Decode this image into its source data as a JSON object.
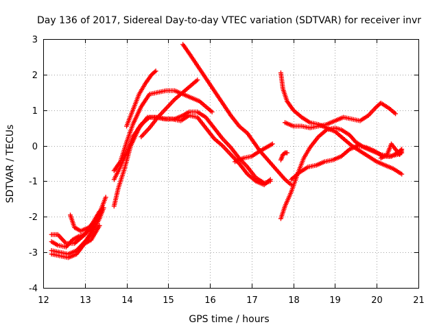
{
  "chart_data": {
    "type": "scatter",
    "title": "Day 136 of 2017, Sidereal Day-to-day VTEC variation (SDTVAR) for receiver invr",
    "xlabel": "GPS time / hours",
    "ylabel": "SDTVAR / TECUs",
    "xlim": [
      12,
      21
    ],
    "ylim": [
      -4,
      3
    ],
    "xticks": [
      {
        "value": 12,
        "label": "12"
      },
      {
        "value": 13,
        "label": "13"
      },
      {
        "value": 14,
        "label": "14"
      },
      {
        "value": 15,
        "label": "15"
      },
      {
        "value": 16,
        "label": "16"
      },
      {
        "value": 17,
        "label": "17"
      },
      {
        "value": 18,
        "label": "18"
      },
      {
        "value": 19,
        "label": "19"
      },
      {
        "value": 20,
        "label": "20"
      },
      {
        "value": 21,
        "label": "21"
      }
    ],
    "yticks": [
      {
        "value": -4,
        "label": "-4"
      },
      {
        "value": -3,
        "label": "-3"
      },
      {
        "value": -2,
        "label": "-2"
      },
      {
        "value": -1,
        "label": "-1"
      },
      {
        "value": 0,
        "label": "0"
      },
      {
        "value": 1,
        "label": "1"
      },
      {
        "value": 2,
        "label": "2"
      },
      {
        "value": 3,
        "label": "3"
      }
    ],
    "grid": true,
    "legend": "none",
    "marker": "+",
    "color": "#ff0000",
    "series": [
      {
        "name": "arc-1",
        "points": [
          [
            12.2,
            -3.05
          ],
          [
            12.4,
            -3.1
          ],
          [
            12.6,
            -3.15
          ],
          [
            12.8,
            -3.05
          ],
          [
            12.9,
            -2.9
          ],
          [
            13.05,
            -2.65
          ],
          [
            13.2,
            -2.3
          ],
          [
            13.35,
            -1.9
          ],
          [
            13.5,
            -1.45
          ]
        ]
      },
      {
        "name": "arc-2",
        "points": [
          [
            12.2,
            -2.95
          ],
          [
            12.4,
            -3.0
          ],
          [
            12.6,
            -3.05
          ],
          [
            12.8,
            -2.95
          ],
          [
            13.0,
            -2.7
          ],
          [
            13.2,
            -2.4
          ],
          [
            13.35,
            -2.05
          ],
          [
            13.45,
            -1.75
          ]
        ]
      },
      {
        "name": "arc-3",
        "points": [
          [
            12.2,
            -2.5
          ],
          [
            12.35,
            -2.5
          ],
          [
            12.55,
            -2.75
          ],
          [
            12.75,
            -2.75
          ],
          [
            12.95,
            -2.55
          ],
          [
            13.1,
            -2.35
          ],
          [
            13.25,
            -2.05
          ],
          [
            13.35,
            -1.85
          ]
        ]
      },
      {
        "name": "arc-4",
        "points": [
          [
            12.2,
            -2.7
          ],
          [
            12.35,
            -2.8
          ],
          [
            12.55,
            -2.85
          ],
          [
            12.7,
            -2.65
          ],
          [
            12.85,
            -2.55
          ],
          [
            13.0,
            -2.5
          ],
          [
            13.15,
            -2.3
          ],
          [
            13.3,
            -2.0
          ]
        ]
      },
      {
        "name": "arc-5",
        "points": [
          [
            12.65,
            -1.95
          ],
          [
            12.75,
            -2.3
          ],
          [
            12.9,
            -2.4
          ],
          [
            13.1,
            -2.3
          ],
          [
            13.25,
            -2.1
          ]
        ]
      },
      {
        "name": "arc-6",
        "points": [
          [
            12.85,
            -2.9
          ],
          [
            13.0,
            -2.75
          ],
          [
            13.15,
            -2.65
          ],
          [
            13.25,
            -2.45
          ],
          [
            13.35,
            -2.25
          ]
        ]
      },
      {
        "name": "arc-7",
        "points": [
          [
            13.7,
            -1.7
          ],
          [
            13.8,
            -1.2
          ],
          [
            13.95,
            -0.65
          ],
          [
            14.1,
            0.0
          ],
          [
            14.3,
            0.5
          ],
          [
            14.5,
            0.8
          ],
          [
            14.7,
            0.8
          ],
          [
            14.9,
            0.75
          ],
          [
            15.1,
            0.75
          ],
          [
            15.3,
            0.7
          ],
          [
            15.5,
            0.85
          ],
          [
            15.7,
            0.8
          ],
          [
            15.9,
            0.5
          ],
          [
            16.1,
            0.2
          ],
          [
            16.3,
            0.0
          ],
          [
            16.5,
            -0.25
          ],
          [
            16.7,
            -0.5
          ],
          [
            16.9,
            -0.8
          ],
          [
            17.1,
            -1.0
          ],
          [
            17.3,
            -1.1
          ],
          [
            17.45,
            -0.95
          ]
        ]
      },
      {
        "name": "arc-8",
        "points": [
          [
            13.7,
            -0.95
          ],
          [
            13.85,
            -0.6
          ],
          [
            14.0,
            -0.2
          ],
          [
            14.15,
            0.25
          ],
          [
            14.35,
            0.6
          ],
          [
            14.55,
            0.8
          ],
          [
            14.75,
            0.8
          ],
          [
            14.95,
            0.75
          ],
          [
            15.15,
            0.75
          ],
          [
            15.35,
            0.85
          ],
          [
            15.5,
            0.95
          ],
          [
            15.7,
            0.95
          ],
          [
            15.9,
            0.8
          ],
          [
            16.1,
            0.5
          ],
          [
            16.3,
            0.2
          ],
          [
            16.5,
            -0.05
          ],
          [
            16.7,
            -0.35
          ],
          [
            16.9,
            -0.6
          ],
          [
            17.1,
            -0.9
          ],
          [
            17.3,
            -1.05
          ],
          [
            17.45,
            -1.0
          ]
        ]
      },
      {
        "name": "arc-9",
        "points": [
          [
            13.7,
            -0.7
          ],
          [
            13.85,
            -0.45
          ],
          [
            14.0,
            0.1
          ],
          [
            14.15,
            0.6
          ],
          [
            14.35,
            1.1
          ],
          [
            14.55,
            1.45
          ],
          [
            14.75,
            1.5
          ],
          [
            14.95,
            1.55
          ],
          [
            15.15,
            1.55
          ],
          [
            15.35,
            1.45
          ],
          [
            15.55,
            1.35
          ],
          [
            15.75,
            1.25
          ],
          [
            15.9,
            1.1
          ],
          [
            16.05,
            0.95
          ]
        ]
      },
      {
        "name": "arc-10",
        "points": [
          [
            14.0,
            0.55
          ],
          [
            14.15,
            1.0
          ],
          [
            14.3,
            1.45
          ],
          [
            14.45,
            1.75
          ],
          [
            14.6,
            2.0
          ],
          [
            14.7,
            2.1
          ]
        ]
      },
      {
        "name": "arc-11",
        "points": [
          [
            14.35,
            0.25
          ],
          [
            14.55,
            0.5
          ],
          [
            14.75,
            0.8
          ],
          [
            14.95,
            1.05
          ],
          [
            15.15,
            1.3
          ],
          [
            15.35,
            1.5
          ],
          [
            15.55,
            1.7
          ],
          [
            15.7,
            1.85
          ]
        ]
      },
      {
        "name": "arc-12",
        "points": [
          [
            15.35,
            2.85
          ],
          [
            15.5,
            2.6
          ],
          [
            15.7,
            2.25
          ],
          [
            15.9,
            1.9
          ],
          [
            16.1,
            1.55
          ],
          [
            16.3,
            1.2
          ],
          [
            16.5,
            0.85
          ],
          [
            16.7,
            0.55
          ],
          [
            16.9,
            0.35
          ],
          [
            17.05,
            0.1
          ],
          [
            17.2,
            -0.15
          ],
          [
            17.35,
            -0.35
          ],
          [
            17.5,
            -0.55
          ],
          [
            17.65,
            -0.75
          ],
          [
            17.8,
            -0.95
          ],
          [
            17.95,
            -1.1
          ]
        ]
      },
      {
        "name": "arc-13",
        "points": [
          [
            16.6,
            -0.45
          ],
          [
            16.8,
            -0.35
          ],
          [
            17.0,
            -0.3
          ],
          [
            17.2,
            -0.15
          ],
          [
            17.35,
            -0.05
          ],
          [
            17.5,
            0.05
          ]
        ]
      },
      {
        "name": "arc-14",
        "points": [
          [
            17.7,
            -0.4
          ],
          [
            17.75,
            -0.25
          ],
          [
            17.8,
            -0.2
          ],
          [
            17.85,
            -0.2
          ]
        ]
      },
      {
        "name": "arc-15",
        "points": [
          [
            17.7,
            2.05
          ],
          [
            17.75,
            1.6
          ],
          [
            17.85,
            1.25
          ],
          [
            18.0,
            1.0
          ],
          [
            18.2,
            0.8
          ],
          [
            18.4,
            0.65
          ],
          [
            18.6,
            0.6
          ],
          [
            18.8,
            0.5
          ],
          [
            19.0,
            0.4
          ],
          [
            19.2,
            0.2
          ],
          [
            19.4,
            0.0
          ],
          [
            19.6,
            -0.15
          ],
          [
            19.8,
            -0.3
          ],
          [
            20.0,
            -0.45
          ],
          [
            20.2,
            -0.55
          ],
          [
            20.4,
            -0.65
          ],
          [
            20.6,
            -0.8
          ]
        ]
      },
      {
        "name": "arc-16",
        "points": [
          [
            17.8,
            0.65
          ],
          [
            18.0,
            0.55
          ],
          [
            18.2,
            0.55
          ],
          [
            18.4,
            0.5
          ],
          [
            18.6,
            0.55
          ],
          [
            18.8,
            0.6
          ],
          [
            19.0,
            0.7
          ],
          [
            19.2,
            0.8
          ],
          [
            19.4,
            0.75
          ],
          [
            19.6,
            0.7
          ],
          [
            19.8,
            0.85
          ],
          [
            20.0,
            1.1
          ],
          [
            20.1,
            1.2
          ],
          [
            20.3,
            1.05
          ],
          [
            20.45,
            0.9
          ]
        ]
      },
      {
        "name": "arc-17",
        "points": [
          [
            17.7,
            -2.05
          ],
          [
            17.8,
            -1.7
          ],
          [
            17.95,
            -1.3
          ],
          [
            18.1,
            -0.8
          ],
          [
            18.25,
            -0.35
          ],
          [
            18.4,
            -0.05
          ],
          [
            18.6,
            0.25
          ],
          [
            18.8,
            0.45
          ],
          [
            19.0,
            0.5
          ],
          [
            19.15,
            0.45
          ],
          [
            19.35,
            0.3
          ],
          [
            19.5,
            0.1
          ],
          [
            19.7,
            -0.05
          ],
          [
            19.9,
            -0.15
          ],
          [
            20.1,
            -0.25
          ],
          [
            20.3,
            -0.3
          ],
          [
            20.5,
            -0.25
          ],
          [
            20.6,
            -0.2
          ]
        ]
      },
      {
        "name": "arc-18",
        "points": [
          [
            17.95,
            -0.95
          ],
          [
            18.15,
            -0.75
          ],
          [
            18.35,
            -0.6
          ],
          [
            18.55,
            -0.55
          ],
          [
            18.75,
            -0.45
          ],
          [
            18.95,
            -0.4
          ],
          [
            19.15,
            -0.3
          ],
          [
            19.35,
            -0.1
          ],
          [
            19.55,
            0.0
          ],
          [
            19.75,
            -0.05
          ],
          [
            19.95,
            -0.15
          ],
          [
            20.15,
            -0.3
          ],
          [
            20.35,
            -0.3
          ],
          [
            20.5,
            -0.2
          ],
          [
            20.6,
            -0.1
          ]
        ]
      },
      {
        "name": "arc-19",
        "points": [
          [
            20.1,
            -0.35
          ],
          [
            20.25,
            -0.25
          ],
          [
            20.35,
            0.05
          ],
          [
            20.45,
            -0.1
          ],
          [
            20.55,
            -0.25
          ],
          [
            20.6,
            -0.15
          ]
        ]
      }
    ]
  }
}
